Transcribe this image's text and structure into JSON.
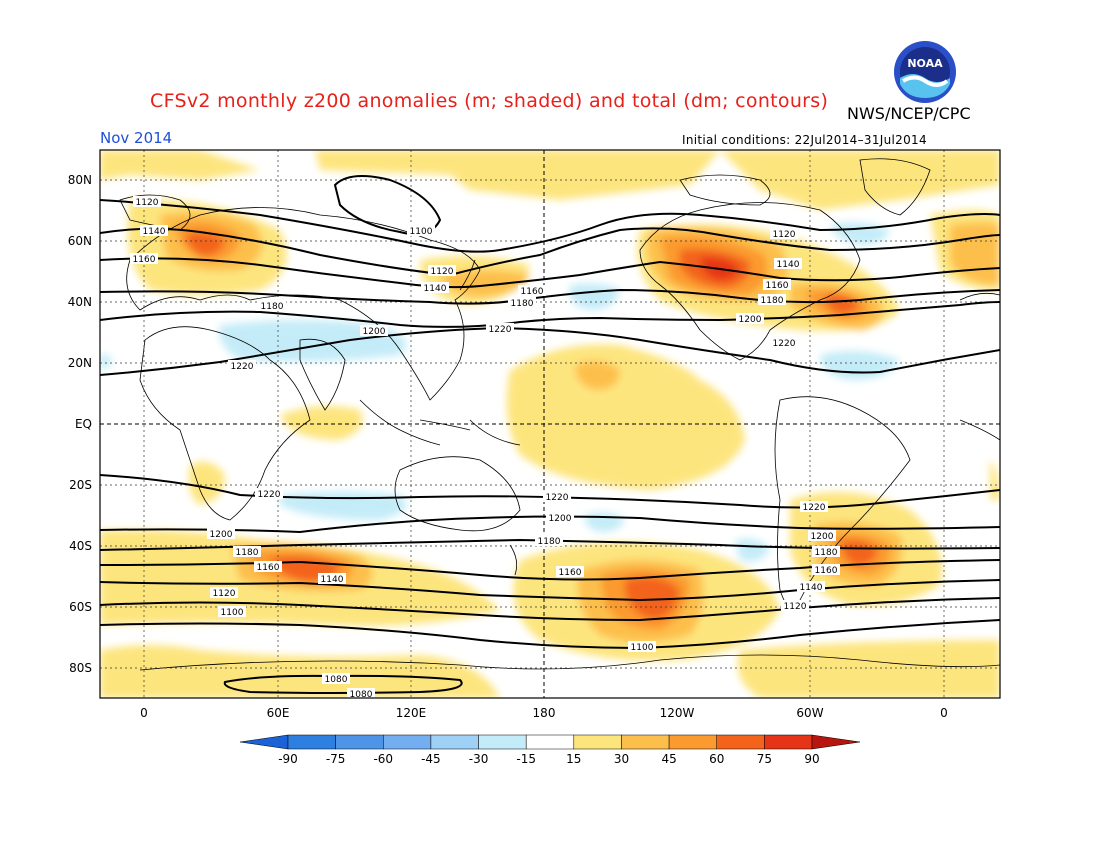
{
  "title": "CFSv2 monthly z200 anomalies (m; shaded) and total (dm; contours)",
  "organization": "NWS/NCEP/CPC",
  "month": "Nov 2014",
  "initial_conditions": "Initial conditions: 22Jul2014–31Jul2014",
  "logo": {
    "icon": "noaa-logo",
    "text": "NOAA"
  },
  "map": {
    "lat_labels": [
      "80N",
      "60N",
      "40N",
      "20N",
      "EQ",
      "20S",
      "40S",
      "60S",
      "80S"
    ],
    "lon_labels": [
      "0",
      "60E",
      "120E",
      "180",
      "120W",
      "60W",
      "0"
    ]
  },
  "colorbar": {
    "labels": [
      "-90",
      "-75",
      "-60",
      "-45",
      "-30",
      "-15",
      "15",
      "30",
      "45",
      "60",
      "75",
      "90"
    ],
    "colors": [
      "#1a62d6",
      "#2d7fe0",
      "#4e95e8",
      "#73aef0",
      "#9fd0f5",
      "#c4ecf8",
      "#ffffff",
      "#fde57e",
      "#fdbf4b",
      "#fb9a2e",
      "#f3631c",
      "#e53418",
      "#b8150e"
    ]
  },
  "chart_data": {
    "type": "contour",
    "variable": "z200",
    "shading": "anomalies (m)",
    "contours": "total (dm)",
    "contour_labels": [
      "1080",
      "1100",
      "1120",
      "1140",
      "1160",
      "1180",
      "1200",
      "1220"
    ],
    "anomaly_levels": [
      -90,
      -75,
      -60,
      -45,
      -30,
      -15,
      15,
      30,
      45,
      60,
      75,
      90
    ]
  }
}
